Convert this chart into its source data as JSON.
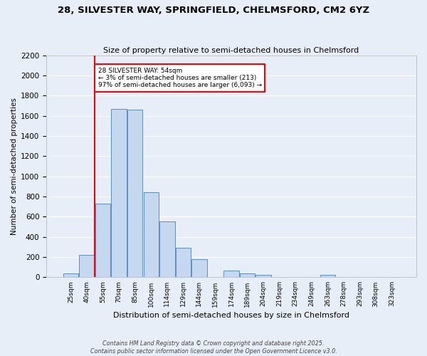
{
  "title": "28, SILVESTER WAY, SPRINGFIELD, CHELMSFORD, CM2 6YZ",
  "subtitle": "Size of property relative to semi-detached houses in Chelmsford",
  "xlabel": "Distribution of semi-detached houses by size in Chelmsford",
  "ylabel": "Number of semi-detached properties",
  "bar_color": "#c5d8f0",
  "bar_edge_color": "#5b8dc8",
  "background_color": "#e8eef8",
  "grid_color": "#ffffff",
  "categories": [
    "25sqm",
    "40sqm",
    "55sqm",
    "70sqm",
    "85sqm",
    "100sqm",
    "114sqm",
    "129sqm",
    "144sqm",
    "159sqm",
    "174sqm",
    "189sqm",
    "204sqm",
    "219sqm",
    "234sqm",
    "249sqm",
    "263sqm",
    "278sqm",
    "293sqm",
    "308sqm",
    "323sqm"
  ],
  "values": [
    35,
    220,
    730,
    1670,
    1660,
    840,
    555,
    295,
    180,
    0,
    65,
    35,
    25,
    0,
    0,
    0,
    20,
    0,
    0,
    0,
    0
  ],
  "red_line_index": 2,
  "annotation_title": "28 SILVESTER WAY: 54sqm",
  "annotation_line1": "← 3% of semi-detached houses are smaller (213)",
  "annotation_line2": "97% of semi-detached houses are larger (6,093) →",
  "ylim": [
    0,
    2200
  ],
  "yticks": [
    0,
    200,
    400,
    600,
    800,
    1000,
    1200,
    1400,
    1600,
    1800,
    2000,
    2200
  ],
  "footer1": "Contains HM Land Registry data © Crown copyright and database right 2025.",
  "footer2": "Contains public sector information licensed under the Open Government Licence v3.0."
}
